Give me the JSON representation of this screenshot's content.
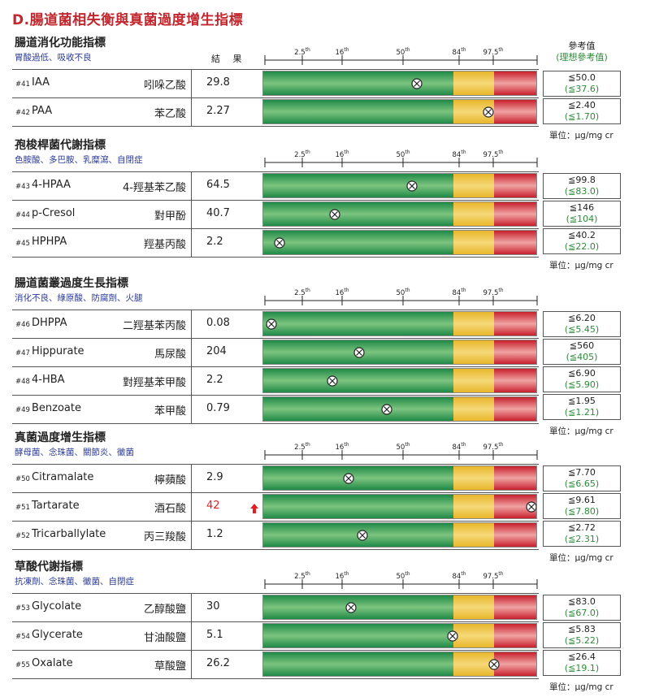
{
  "title": "D.腸道菌相失衡與真菌過度增生指標",
  "result_header": "結 果",
  "ref_header": "參考值",
  "ref_header_ideal": "(理想參考值)",
  "unit": "單位：µg/mg cr",
  "scale_ticks": [
    {
      "label": "2.5",
      "sup": "th"
    },
    {
      "label": "16",
      "sup": "th"
    },
    {
      "label": "50",
      "sup": "th"
    },
    {
      "label": "84",
      "sup": "th"
    },
    {
      "label": "97.5",
      "sup": "th"
    }
  ],
  "colors": {
    "green": "#1f8a47",
    "yellow": "#e8b62a",
    "red": "#c7202d",
    "high": "#e02020",
    "ideal": "#2e8b3a"
  },
  "sections": [
    {
      "title": "腸道消化功能指標",
      "subtitle": "胃酸過低、吸收不良",
      "rows": [
        {
          "num": "#41",
          "en": "IAA",
          "zh": "吲哚乙酸",
          "value": "29.8",
          "flag": "",
          "ref": "≦50.0",
          "ideal": "(≦37.6)",
          "position": 0.56
        },
        {
          "num": "#42",
          "en": "PAA",
          "zh": "苯乙酸",
          "value": "2.27",
          "flag": "",
          "ref": "≦2.40",
          "ideal": "(≦1.70)",
          "position": 0.82
        }
      ]
    },
    {
      "title": "孢梭桿菌代謝指標",
      "subtitle": "色胺酸、多巴胺、乳糜瀉、自閉症",
      "rows": [
        {
          "num": "#43",
          "en": "4-HPAA",
          "zh": "4-羥基苯乙酸",
          "value": "64.5",
          "flag": "",
          "ref": "≦99.8",
          "ideal": "(≦83.0)",
          "position": 0.54
        },
        {
          "num": "#44",
          "en": "p-Cresol",
          "zh": "對甲酚",
          "value": "40.7",
          "flag": "",
          "ref": "≦146",
          "ideal": "(≦104)",
          "position": 0.26
        },
        {
          "num": "#45",
          "en": "HPHPA",
          "zh": "羥基丙酸",
          "value": "2.2",
          "flag": "",
          "ref": "≦40.2",
          "ideal": "(≦22.0)",
          "position": 0.06
        }
      ]
    },
    {
      "title": "腸道菌叢過度生長指標",
      "subtitle": "消化不良、綠原酸、防腐劑、火腿",
      "rows": [
        {
          "num": "#46",
          "en": "DHPPA",
          "zh": "二羥基苯丙酸",
          "value": "0.08",
          "flag": "",
          "ref": "≦6.20",
          "ideal": "(≦5.45)",
          "position": 0.03
        },
        {
          "num": "#47",
          "en": "Hippurate",
          "zh": "馬尿酸",
          "value": "204",
          "flag": "",
          "ref": "≦560",
          "ideal": "(≦405)",
          "position": 0.35
        },
        {
          "num": "#48",
          "en": "4-HBA",
          "zh": "對羥基苯甲酸",
          "value": "2.2",
          "flag": "",
          "ref": "≦6.90",
          "ideal": "(≦5.90)",
          "position": 0.25
        },
        {
          "num": "#49",
          "en": "Benzoate",
          "zh": "苯甲酸",
          "value": "0.79",
          "flag": "",
          "ref": "≦1.95",
          "ideal": "(≦1.21)",
          "position": 0.45
        }
      ]
    },
    {
      "title": "真菌過度增生指標",
      "subtitle": "酵母菌、念珠菌、關節炎、黴菌",
      "rows": [
        {
          "num": "#50",
          "en": "Citramalate",
          "zh": "檸蘋酸",
          "value": "2.9",
          "flag": "",
          "ref": "≦7.70",
          "ideal": "(≦6.65)",
          "position": 0.31
        },
        {
          "num": "#51",
          "en": "Tartarate",
          "zh": "酒石酸",
          "value": "42",
          "flag": "high",
          "ref": "≦9.61",
          "ideal": "(≦7.80)",
          "position": 0.995
        },
        {
          "num": "#52",
          "en": "Tricarballylate",
          "zh": "丙三羧酸",
          "value": "1.2",
          "flag": "",
          "ref": "≦2.72",
          "ideal": "(≦2.31)",
          "position": 0.36
        }
      ]
    },
    {
      "title": "草酸代謝指標",
      "subtitle": "抗凍劑、念珠菌、黴菌、自閉症",
      "rows": [
        {
          "num": "#53",
          "en": "Glycolate",
          "zh": "乙醇酸鹽",
          "value": "30",
          "flag": "",
          "ref": "≦83.0",
          "ideal": "(≦67.0)",
          "position": 0.32
        },
        {
          "num": "#54",
          "en": "Glycerate",
          "zh": "甘油酸鹽",
          "value": "5.1",
          "flag": "",
          "ref": "≦5.83",
          "ideal": "(≦5.22)",
          "position": 0.69
        },
        {
          "num": "#55",
          "en": "Oxalate",
          "zh": "草酸鹽",
          "value": "26.2",
          "flag": "",
          "ref": "≦26.4",
          "ideal": "(≦19.1)",
          "position": 0.84
        }
      ]
    }
  ]
}
